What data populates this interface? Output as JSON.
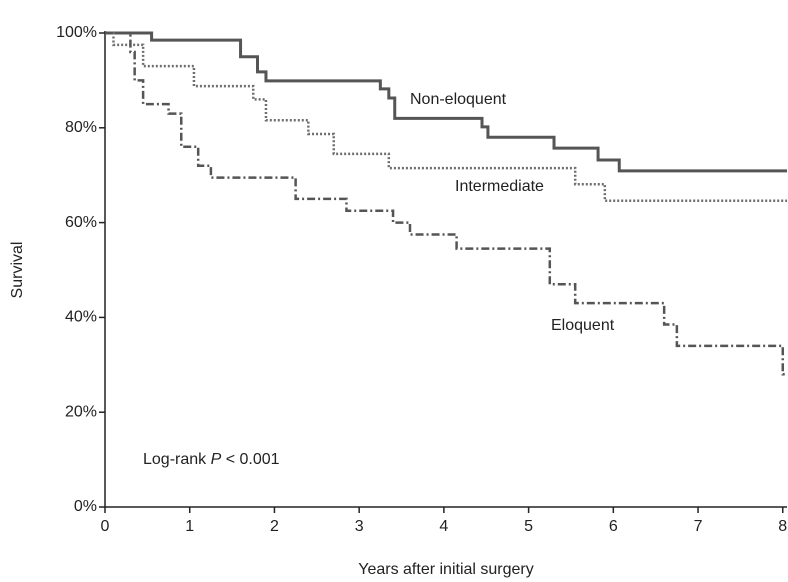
{
  "chart_data": {
    "type": "step",
    "x_label": "Years after initial surgery",
    "y_label": "Survival",
    "xlim": [
      0,
      8.05
    ],
    "ylim": [
      0,
      100
    ],
    "xticks": [
      0,
      1,
      2,
      3,
      4,
      5,
      6,
      7,
      8
    ],
    "yticks": [
      {
        "value": 0,
        "label": "0%"
      },
      {
        "value": 20,
        "label": "20%"
      },
      {
        "value": 40,
        "label": "40%"
      },
      {
        "value": 60,
        "label": "60%"
      },
      {
        "value": 80,
        "label": "80%"
      },
      {
        "value": 100,
        "label": "100%"
      }
    ],
    "annotation": [
      "Log-rank ",
      "P",
      " < 0.001"
    ],
    "series": [
      {
        "name": "Non-eloquent",
        "color": "#555555",
        "style": "solid",
        "x": [
          0,
          0.55,
          1.6,
          1.8,
          1.9,
          3.25,
          3.35,
          3.42,
          4.45,
          4.52,
          5.3,
          5.82,
          6.07,
          8.05
        ],
        "values": [
          100,
          98.5,
          95,
          91.8,
          89.9,
          88.2,
          86.3,
          82,
          80.2,
          78,
          75.7,
          73.2,
          70.9,
          70.9
        ]
      },
      {
        "name": "Intermediate",
        "color": "#6e6e6e",
        "style": "dotted",
        "x": [
          0,
          0.1,
          0.45,
          1.05,
          1.75,
          1.9,
          2.4,
          2.7,
          3.35,
          5.55,
          5.9,
          8.05
        ],
        "values": [
          100,
          97.5,
          93,
          88.8,
          86,
          81.6,
          78.7,
          74.5,
          71.5,
          68.1,
          64.6,
          64.6
        ]
      },
      {
        "name": "Eloquent",
        "color": "#555555",
        "style": "dashdot",
        "x": [
          0,
          0.3,
          0.35,
          0.45,
          0.75,
          0.9,
          1.1,
          1.25,
          2.25,
          2.85,
          3.4,
          3.6,
          4.15,
          5.25,
          5.55,
          6.6,
          6.75,
          8.0,
          8.05
        ],
        "values": [
          100,
          96,
          90,
          85,
          83,
          76,
          72,
          69.5,
          65,
          62.5,
          60,
          57.5,
          54.5,
          47,
          43,
          38.5,
          34,
          28,
          28
        ]
      }
    ]
  }
}
